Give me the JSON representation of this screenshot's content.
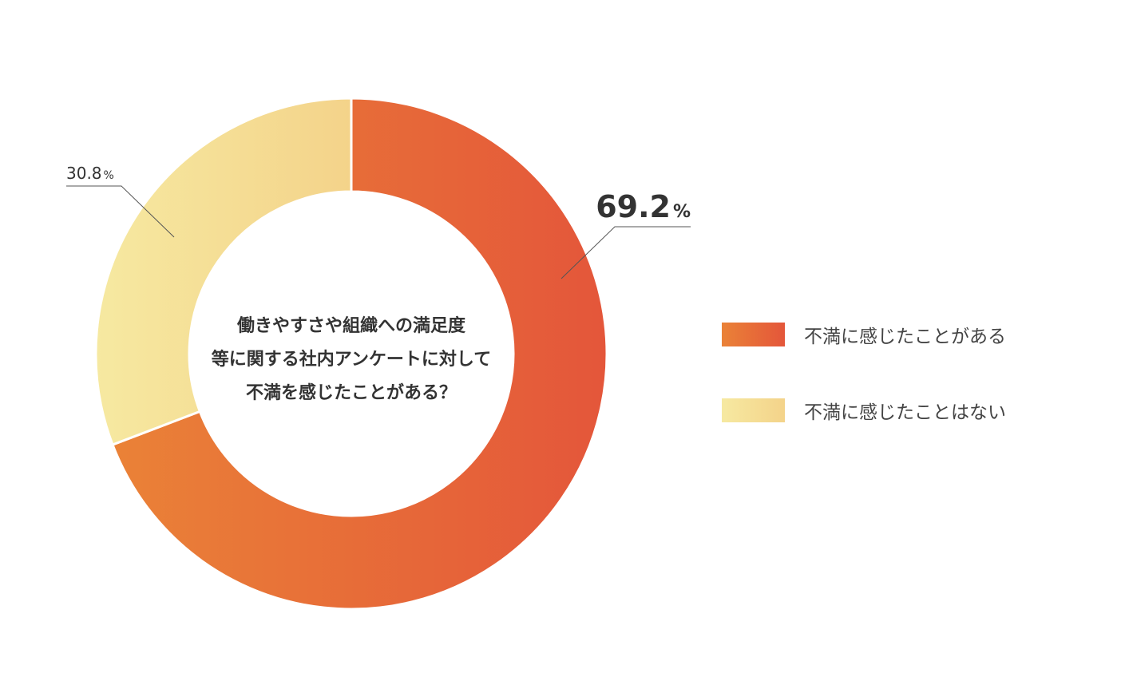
{
  "chart_data": {
    "type": "pie",
    "variant": "donut",
    "title": "働きやすさや組織への満足度\n等に関する社内アンケートに対して\n不満を感じたことがある？",
    "title_lines": [
      "働きやすさや組織への満足度",
      "等に関する社内アンケートに対して",
      "不満を感じたことがある？"
    ],
    "slices": [
      {
        "label": "不満に感じたことがある",
        "value": 69.2,
        "value_text": "69.2",
        "unit": "%",
        "gradient": [
          "#ea8237",
          "#e4563a"
        ]
      },
      {
        "label": "不満に感じたことはない",
        "value": 30.8,
        "value_text": "30.8",
        "unit": "%",
        "gradient": [
          "#f6e9a1",
          "#f4d38a"
        ]
      }
    ],
    "start": "top",
    "direction": "clockwise",
    "legend_position": "right"
  }
}
